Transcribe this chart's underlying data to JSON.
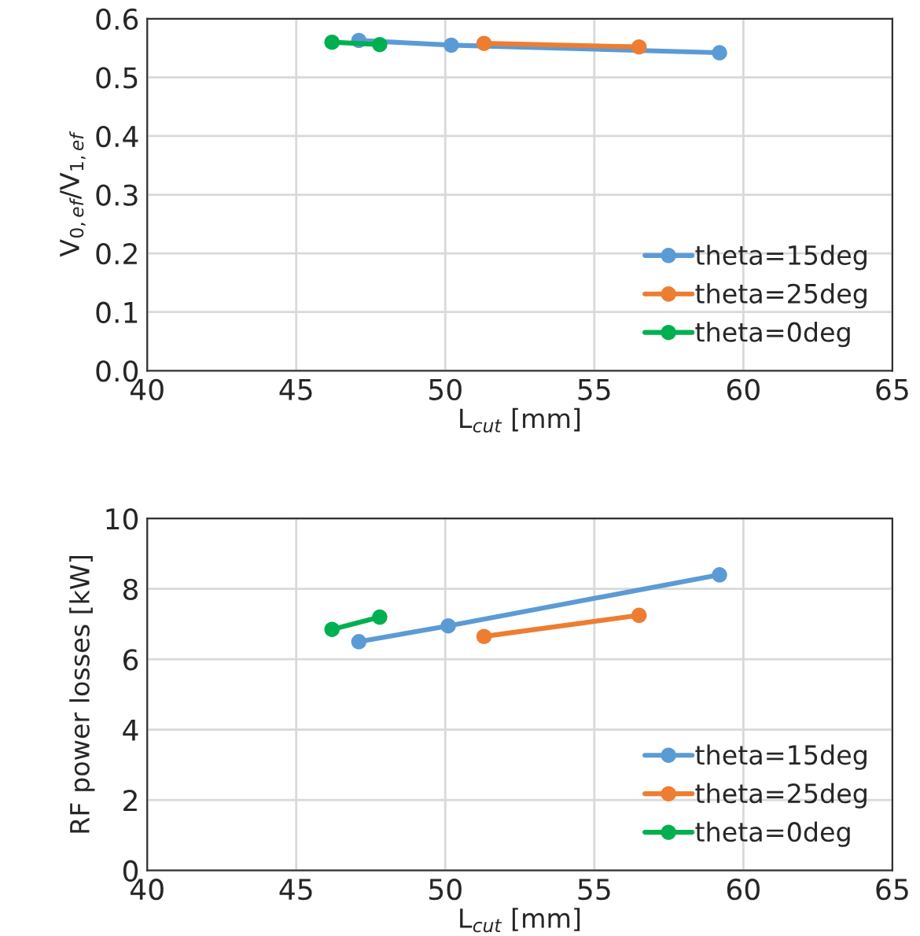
{
  "chart_data": [
    {
      "type": "line",
      "xlabel": "L$_{cut}$ [mm]",
      "ylabel": "V$_{0,ef}$/V$_{1,ef}$",
      "xlim": [
        40,
        65
      ],
      "xticks": [
        40,
        45,
        50,
        55,
        60,
        65
      ],
      "ylim": [
        0,
        0.6
      ],
      "yticks": [
        {
          "value": 0,
          "label": "0.0"
        },
        {
          "value": 0.1,
          "label": "0.1"
        },
        {
          "value": 0.2,
          "label": "0.2"
        },
        {
          "value": 0.3,
          "label": "0.3"
        },
        {
          "value": 0.4,
          "label": "0.4"
        },
        {
          "value": 0.5,
          "label": "0.5"
        },
        {
          "value": 0.6,
          "label": "0.6"
        }
      ],
      "grid": true,
      "legend": "bottom right",
      "marker": "circle",
      "line_style": "solid",
      "series": [
        {
          "name": "theta=15deg",
          "color": "#5b9bd5",
          "x": [
            47.1,
            50.2,
            59.2
          ],
          "values": [
            0.563,
            0.555,
            0.542
          ]
        },
        {
          "name": "theta=25deg",
          "color": "#ed7d31",
          "x": [
            51.3,
            56.5
          ],
          "values": [
            0.558,
            0.552
          ]
        },
        {
          "name": "theta=0deg",
          "color": "#00b050",
          "x": [
            46.2,
            47.8
          ],
          "values": [
            0.56,
            0.556
          ]
        }
      ]
    },
    {
      "type": "line",
      "xlabel": "L$_{cut}$ [mm]",
      "ylabel": "RF power losses [kW]",
      "xlim": [
        40,
        65
      ],
      "xticks": [
        40,
        45,
        50,
        55,
        60,
        65
      ],
      "ylim": [
        0,
        10
      ],
      "yticks": [
        0,
        2,
        4,
        6,
        8,
        10
      ],
      "grid": true,
      "legend": "bottom right",
      "marker": "circle",
      "line_style": "solid",
      "series": [
        {
          "name": "theta=15deg",
          "color": "#5b9bd5",
          "x": [
            47.1,
            50.1,
            59.2
          ],
          "values": [
            6.5,
            6.95,
            8.4
          ]
        },
        {
          "name": "theta=25deg",
          "color": "#ed7d31",
          "x": [
            51.3,
            56.5
          ],
          "values": [
            6.65,
            7.25
          ]
        },
        {
          "name": "theta=0deg",
          "color": "#00b050",
          "x": [
            46.2,
            47.8
          ],
          "values": [
            6.85,
            7.2
          ]
        }
      ]
    }
  ]
}
